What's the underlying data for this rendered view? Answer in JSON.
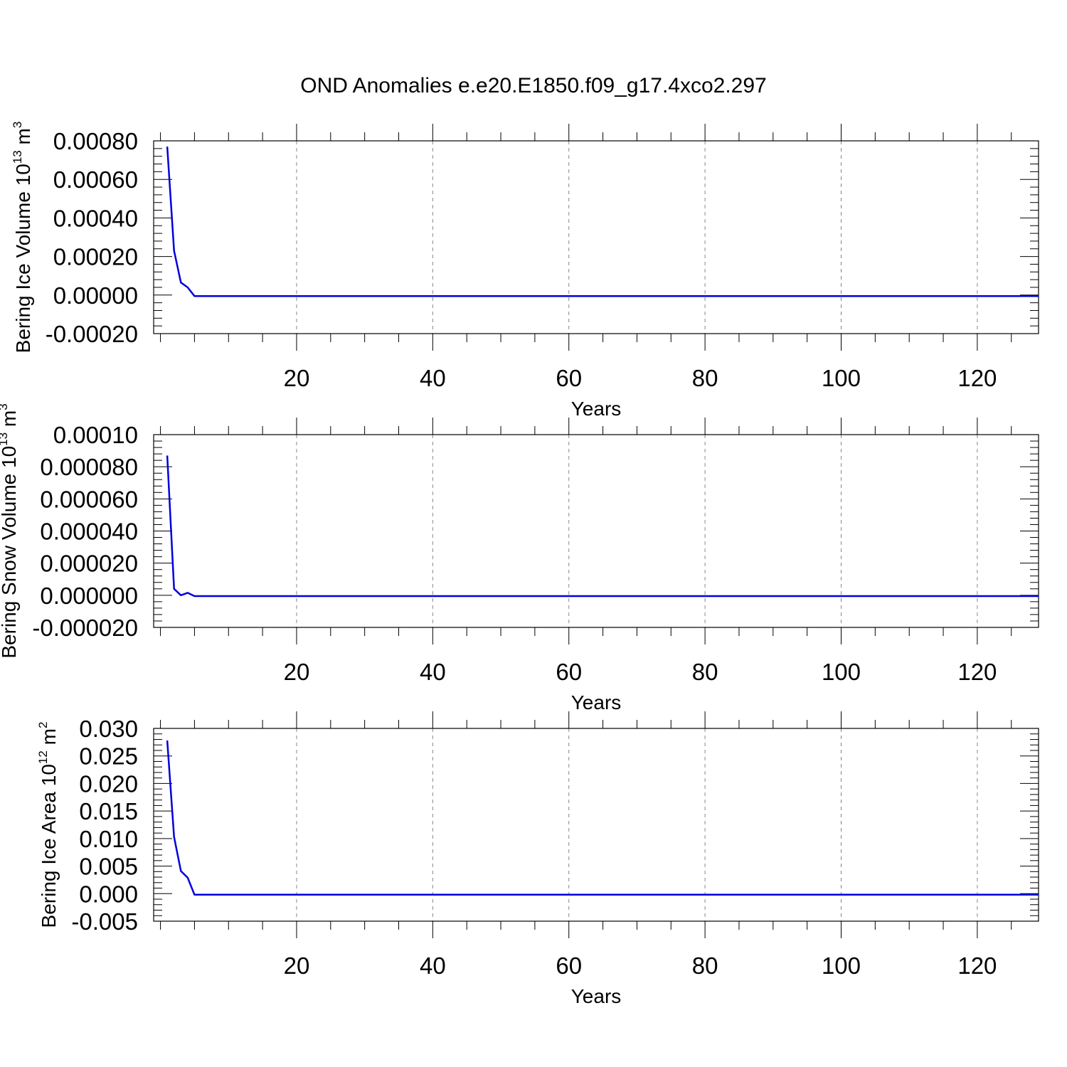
{
  "title": "OND Anomalies e.e20.E1850.f09_g17.4xco2.297",
  "colors": {
    "line": "#0000dd",
    "axis": "#000000",
    "grid": "#888888"
  },
  "chart_data": [
    {
      "type": "line",
      "xlabel": "Years",
      "ylabel": {
        "text": "Bering Ice Volume 10",
        "exp": "13",
        "unit": " m",
        "unit_exp": "3"
      },
      "xlim": [
        -1,
        129
      ],
      "ylim": [
        -0.0002,
        0.0008
      ],
      "xticks": [
        "20",
        "40",
        "60",
        "80",
        "100",
        "120"
      ],
      "xtick_values": [
        20,
        40,
        60,
        80,
        100,
        120
      ],
      "yticks": [
        "-0.00020",
        "0.00000",
        "0.00020",
        "0.00040",
        "0.00060",
        "0.00080"
      ],
      "ytick_values": [
        -0.0002,
        0,
        0.0002,
        0.0004,
        0.0006,
        0.0008
      ],
      "grid": "vertical-dashed",
      "series": [
        {
          "x": [
            1,
            2,
            3,
            4,
            5,
            129
          ],
          "y": [
            0.00077,
            0.00023,
            6.5e-05,
            4e-05,
            -5e-06,
            -5e-06
          ]
        }
      ]
    },
    {
      "type": "line",
      "xlabel": "Years",
      "ylabel": {
        "text": "Bering Snow Volume 10",
        "exp": "13",
        "unit": " m",
        "unit_exp": "3"
      },
      "xlim": [
        -1,
        129
      ],
      "ylim": [
        -2e-05,
        0.0001
      ],
      "xticks": [
        "20",
        "40",
        "60",
        "80",
        "100",
        "120"
      ],
      "xtick_values": [
        20,
        40,
        60,
        80,
        100,
        120
      ],
      "yticks": [
        "-0.000020",
        "0.000000",
        "0.000020",
        "0.000040",
        "0.000060",
        "0.000080",
        "0.00010"
      ],
      "ytick_values": [
        -2e-05,
        0,
        2e-05,
        4e-05,
        6e-05,
        8e-05,
        0.0001
      ],
      "grid": "vertical-dashed",
      "series": [
        {
          "x": [
            1,
            2,
            3,
            4,
            5,
            129
          ],
          "y": [
            8.7e-05,
            4e-06,
            0.0,
            1.5e-06,
            -5e-07,
            -5e-07
          ]
        }
      ]
    },
    {
      "type": "line",
      "xlabel": "Years",
      "ylabel": {
        "text": "Bering Ice Area 10",
        "exp": "12",
        "unit": " m",
        "unit_exp": "2"
      },
      "xlim": [
        -1,
        129
      ],
      "ylim": [
        -0.005,
        0.03
      ],
      "xticks": [
        "20",
        "40",
        "60",
        "80",
        "100",
        "120"
      ],
      "xtick_values": [
        20,
        40,
        60,
        80,
        100,
        120
      ],
      "yticks": [
        "-0.005",
        "0.000",
        "0.005",
        "0.010",
        "0.015",
        "0.020",
        "0.025",
        "0.030"
      ],
      "ytick_values": [
        -0.005,
        0,
        0.005,
        0.01,
        0.015,
        0.02,
        0.025,
        0.03
      ],
      "grid": "vertical-dashed",
      "series": [
        {
          "x": [
            1,
            2,
            3,
            4,
            5,
            129
          ],
          "y": [
            0.0278,
            0.0103,
            0.0041,
            0.0029,
            -0.0002,
            -0.0002
          ]
        }
      ]
    }
  ]
}
